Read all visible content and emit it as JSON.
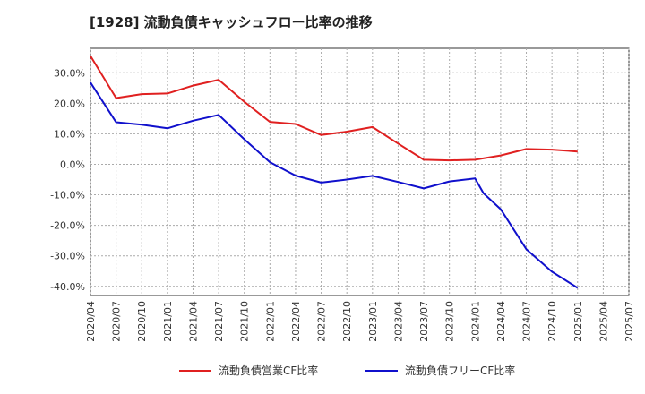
{
  "chart_data": {
    "type": "line",
    "title": "[1928]  流動負債キャッシュフロー比率の推移",
    "y_ticks": [
      "30.0%",
      "20.0%",
      "10.0%",
      "0.0%",
      "-10.0%",
      "-20.0%",
      "-30.0%",
      "-40.0%"
    ],
    "x_ticks": [
      "2020/04",
      "2020/07",
      "2020/10",
      "2021/01",
      "2021/04",
      "2021/07",
      "2021/10",
      "2022/01",
      "2022/04",
      "2022/07",
      "2022/10",
      "2023/01",
      "2023/04",
      "2023/07",
      "2023/10",
      "2024/01",
      "2024/04",
      "2024/07",
      "2024/10",
      "2025/01",
      "2025/04",
      "2025/07"
    ],
    "ylim": [
      -43,
      38
    ],
    "y_tick_values": [
      30,
      20,
      10,
      0,
      -10,
      -20,
      -30,
      -40
    ],
    "grid": true,
    "legend_position": "bottom",
    "series": [
      {
        "name": "流動負債営業CF比率",
        "color": "#e02020",
        "points": [
          [
            "2020/04",
            35.5
          ],
          [
            "2020/07",
            21.7
          ],
          [
            "2020/10",
            23.0
          ],
          [
            "2021/01",
            23.2
          ],
          [
            "2021/04",
            25.8
          ],
          [
            "2021/07",
            27.7
          ],
          [
            "2021/10",
            20.5
          ],
          [
            "2022/01",
            13.9
          ],
          [
            "2022/04",
            13.2
          ],
          [
            "2022/07",
            9.6
          ],
          [
            "2022/10",
            10.7
          ],
          [
            "2023/01",
            12.2
          ],
          [
            "2023/04",
            6.8
          ],
          [
            "2023/07",
            1.5
          ],
          [
            "2023/10",
            1.3
          ],
          [
            "2024/01",
            1.5
          ],
          [
            "2024/04",
            2.9
          ],
          [
            "2024/07",
            5.0
          ],
          [
            "2024/10",
            4.8
          ],
          [
            "2025/01",
            4.2
          ]
        ]
      },
      {
        "name": "流動負債フリーCF比率",
        "color": "#1010cc",
        "points": [
          [
            "2020/04",
            26.8
          ],
          [
            "2020/07",
            13.8
          ],
          [
            "2020/10",
            13.0
          ],
          [
            "2021/01",
            11.8
          ],
          [
            "2021/04",
            14.3
          ],
          [
            "2021/07",
            16.2
          ],
          [
            "2021/10",
            8.2
          ],
          [
            "2022/01",
            0.7
          ],
          [
            "2022/04",
            -3.7
          ],
          [
            "2022/07",
            -6.0
          ],
          [
            "2022/10",
            -5.0
          ],
          [
            "2023/01",
            -3.8
          ],
          [
            "2023/04",
            -5.8
          ],
          [
            "2023/07",
            -7.9
          ],
          [
            "2023/10",
            -5.6
          ],
          [
            "2024/01",
            -4.6
          ],
          [
            "2024/02",
            -9.5
          ],
          [
            "2024/04",
            -14.7
          ],
          [
            "2024/07",
            -27.8
          ],
          [
            "2024/10",
            -35.2
          ],
          [
            "2025/01",
            -40.5
          ]
        ]
      }
    ]
  }
}
